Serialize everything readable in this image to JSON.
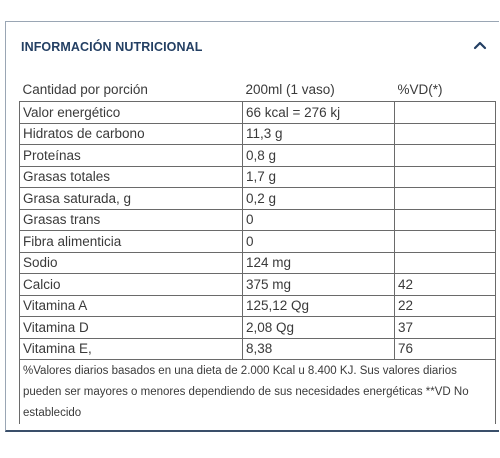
{
  "section": {
    "title": "INFORMACIÓN NUTRICIONAL",
    "toggle_icon": "chevron-up-icon"
  },
  "table": {
    "header": {
      "col1": "Cantidad por porción",
      "col2": "200ml (1 vaso)",
      "col3": "%VD(*)"
    },
    "rows": [
      {
        "name": "Valor energético",
        "amount": "66 kcal = 276 kj",
        "vd": ""
      },
      {
        "name": "Hidratos de carbono",
        "amount": "11,3 g",
        "vd": ""
      },
      {
        "name": "Proteínas",
        "amount": "0,8 g",
        "vd": ""
      },
      {
        "name": "Grasas totales",
        "amount": "1,7 g",
        "vd": ""
      },
      {
        "name": "Grasa saturada, g",
        "amount": "0,2 g",
        "vd": ""
      },
      {
        "name": "Grasas trans",
        "amount": "0",
        "vd": ""
      },
      {
        "name": "Fibra alimenticia",
        "amount": "0",
        "vd": ""
      },
      {
        "name": "Sodio",
        "amount": "124 mg",
        "vd": ""
      },
      {
        "name": "Calcio",
        "amount": "375 mg",
        "vd": "42"
      },
      {
        "name": "Vitamina A",
        "amount": "125,12 Qg",
        "vd": "22"
      },
      {
        "name": "Vitamina D",
        "amount": "2,08 Qg",
        "vd": "37"
      },
      {
        "name": "Vitamina E,",
        "amount": "8,38",
        "vd": "76"
      }
    ],
    "footnote": "%Valores diarios basados en una dieta de 2.000 Kcal u 8.400 KJ. Sus valores diarios pueden ser mayores o menores dependiendo de sus necesidades energéticas **VD No establecido"
  }
}
